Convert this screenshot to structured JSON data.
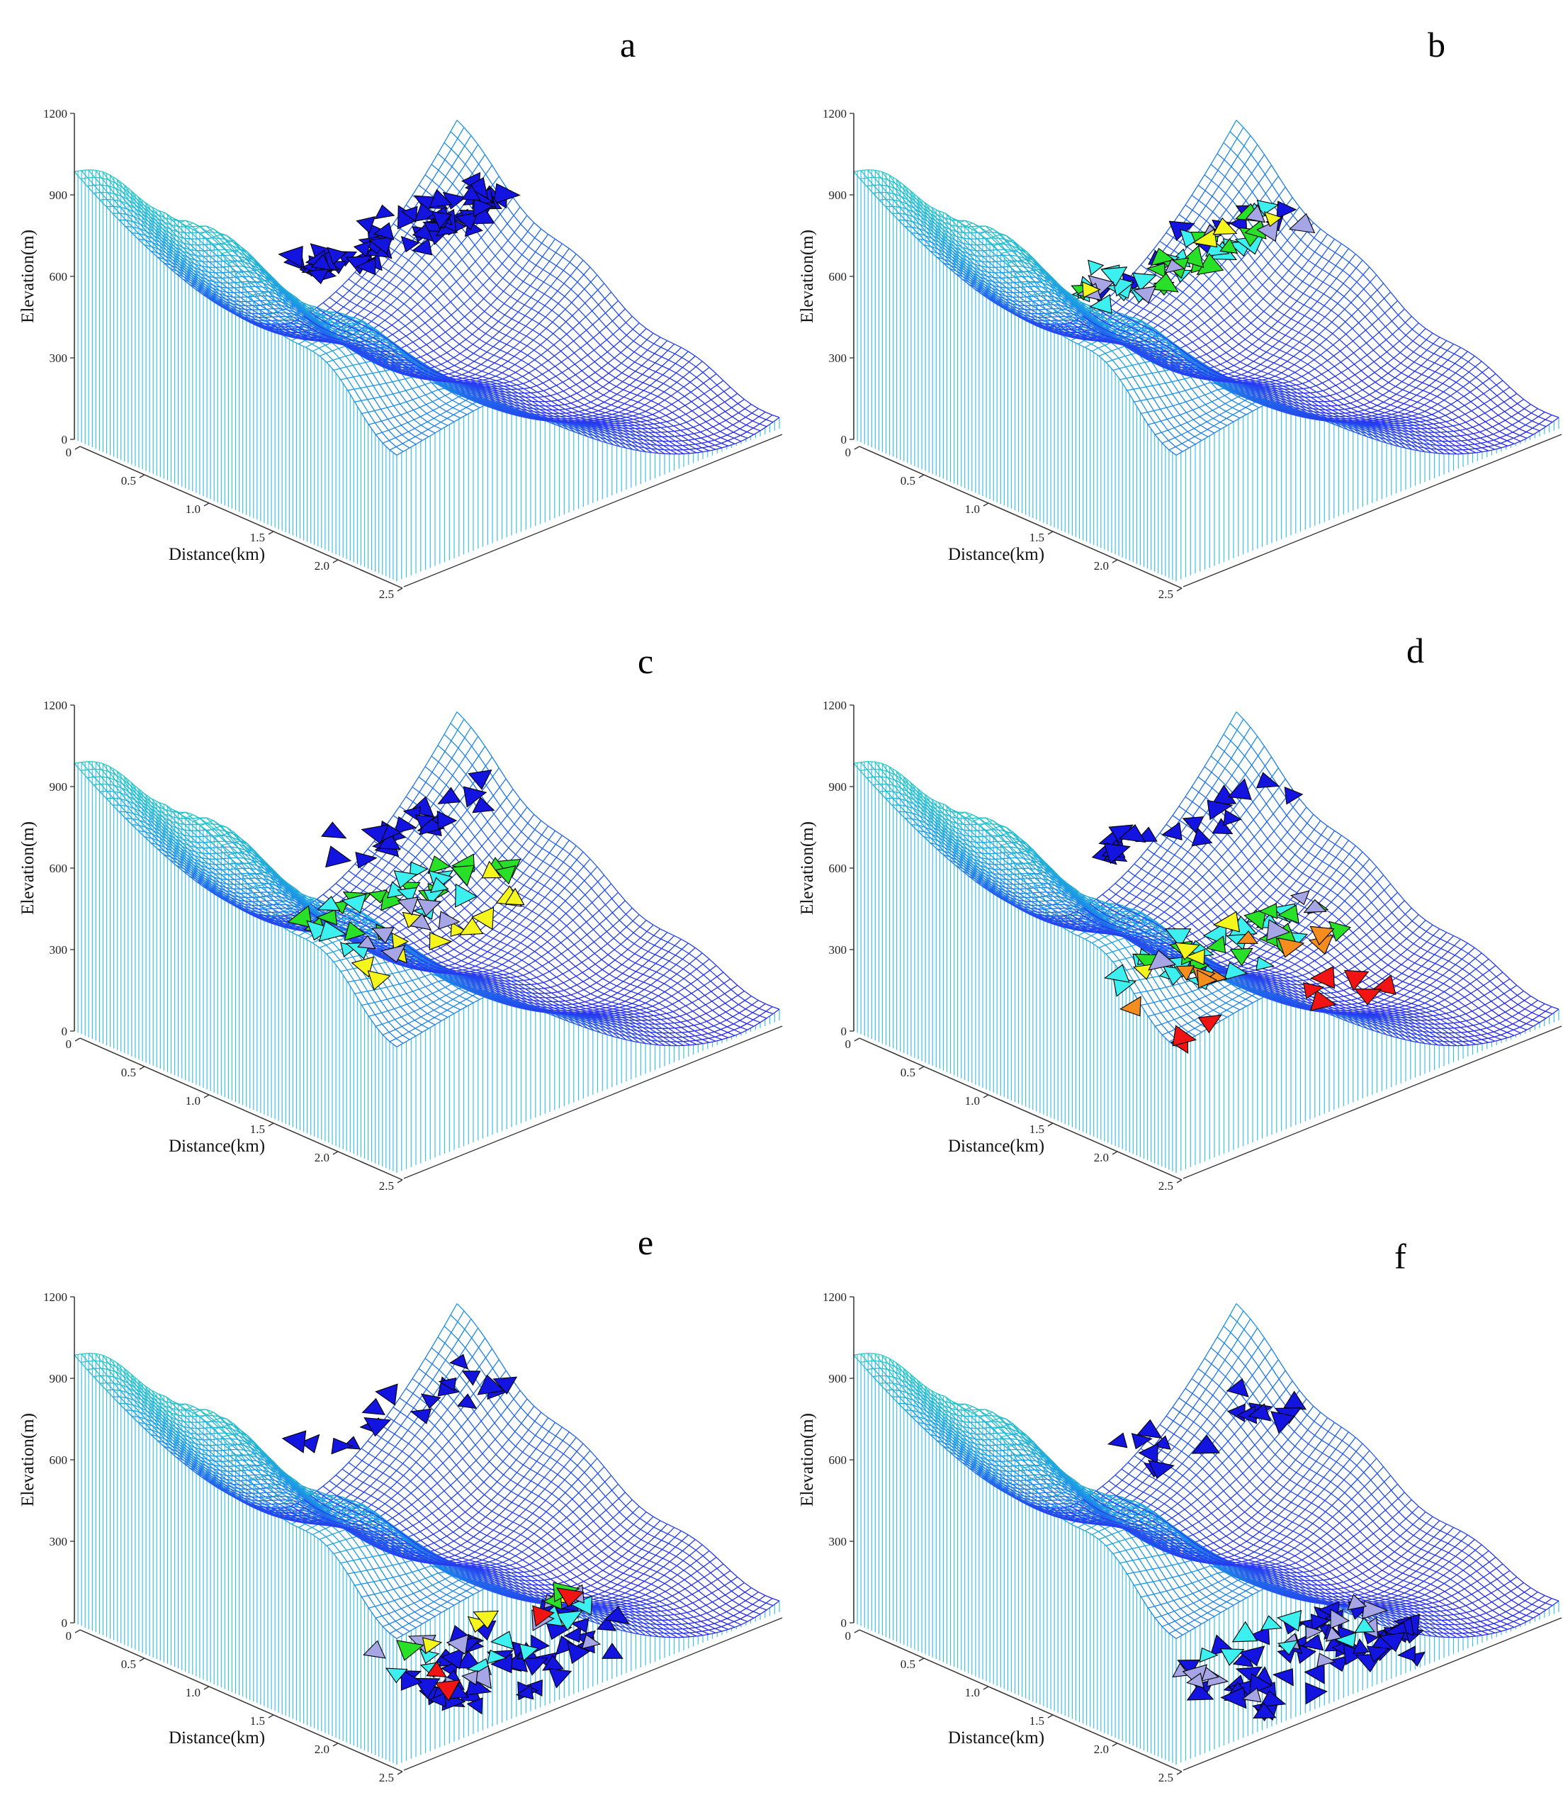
{
  "chart_data": [
    {
      "type": "surface",
      "panel_label": "a",
      "ylabel": "Elevation(m)",
      "xlabel": "Distance(km)",
      "z_ticks": [
        "0",
        "300",
        "600",
        "900",
        "1200"
      ],
      "x_ticks": [
        "0",
        "0.5",
        "1.0",
        "1.5",
        "2.0",
        "2.5"
      ],
      "zlim": [
        0,
        1200
      ],
      "xlim": [
        0,
        2.5
      ],
      "particles": [
        {
          "along": 0.48,
          "elevation": 760,
          "color": "blue",
          "count": 70,
          "spread": 0.08
        }
      ]
    },
    {
      "type": "surface",
      "panel_label": "b",
      "ylabel": "Elevation(m)",
      "xlabel": "Distance(km)",
      "z_ticks": [
        "0",
        "300",
        "600",
        "900",
        "1200"
      ],
      "x_ticks": [
        "0",
        "0.5",
        "1.0",
        "1.5",
        "2.0",
        "2.5"
      ],
      "zlim": [
        0,
        1200
      ],
      "xlim": [
        0,
        2.5
      ],
      "particles": [
        {
          "along": 0.48,
          "elevation": 700,
          "color": "blue",
          "count": 10,
          "spread": 0.07
        },
        {
          "along": 0.5,
          "elevation": 680,
          "color": "cyan",
          "count": 22,
          "spread": 0.08
        },
        {
          "along": 0.5,
          "elevation": 660,
          "color": "green",
          "count": 16,
          "spread": 0.08
        },
        {
          "along": 0.5,
          "elevation": 680,
          "color": "lavender",
          "count": 8,
          "spread": 0.07
        },
        {
          "along": 0.5,
          "elevation": 690,
          "color": "yellow",
          "count": 4,
          "spread": 0.05
        }
      ]
    },
    {
      "type": "surface",
      "panel_label": "c",
      "ylabel": "Elevation(m)",
      "xlabel": "Distance(km)",
      "z_ticks": [
        "0",
        "300",
        "600",
        "900",
        "1200"
      ],
      "x_ticks": [
        "0",
        "0.5",
        "1.0",
        "1.5",
        "2.0",
        "2.5"
      ],
      "zlim": [
        0,
        1200
      ],
      "xlim": [
        0,
        2.5
      ],
      "particles": [
        {
          "along": 0.5,
          "elevation": 760,
          "color": "blue",
          "count": 20,
          "spread": 0.07
        },
        {
          "along": 0.52,
          "elevation": 520,
          "color": "green",
          "count": 18,
          "spread": 0.08
        },
        {
          "along": 0.54,
          "elevation": 520,
          "color": "cyan",
          "count": 16,
          "spread": 0.09
        },
        {
          "along": 0.56,
          "elevation": 420,
          "color": "yellow",
          "count": 12,
          "spread": 0.1
        },
        {
          "along": 0.56,
          "elevation": 480,
          "color": "lavender",
          "count": 7,
          "spread": 0.1
        }
      ]
    },
    {
      "type": "surface",
      "panel_label": "d",
      "ylabel": "Elevation(m)",
      "xlabel": "Distance(km)",
      "z_ticks": [
        "0",
        "300",
        "600",
        "900",
        "1200"
      ],
      "x_ticks": [
        "0",
        "0.5",
        "1.0",
        "1.5",
        "2.0",
        "2.5"
      ],
      "zlim": [
        0,
        1200
      ],
      "xlim": [
        0,
        2.5
      ],
      "particles": [
        {
          "along": 0.5,
          "elevation": 780,
          "color": "blue",
          "count": 18,
          "spread": 0.07
        },
        {
          "along": 0.62,
          "elevation": 380,
          "color": "cyan",
          "count": 22,
          "spread": 0.1
        },
        {
          "along": 0.62,
          "elevation": 370,
          "color": "green",
          "count": 14,
          "spread": 0.09
        },
        {
          "along": 0.64,
          "elevation": 320,
          "color": "orange",
          "count": 9,
          "spread": 0.08
        },
        {
          "along": 0.6,
          "elevation": 440,
          "color": "yellow",
          "count": 4,
          "spread": 0.06
        },
        {
          "along": 0.6,
          "elevation": 420,
          "color": "lavender",
          "count": 4,
          "spread": 0.06
        },
        {
          "along": 0.78,
          "elevation": 230,
          "color": "red",
          "count": 9,
          "spread": 0.06
        }
      ]
    },
    {
      "type": "surface",
      "panel_label": "e",
      "ylabel": "Elevation(m)",
      "xlabel": "Distance(km)",
      "z_ticks": [
        "0",
        "300",
        "600",
        "900",
        "1200"
      ],
      "x_ticks": [
        "0",
        "0.5",
        "1.0",
        "1.5",
        "2.0",
        "2.5"
      ],
      "zlim": [
        0,
        1200
      ],
      "xlim": [
        0,
        2.5
      ],
      "particles": [
        {
          "along": 0.48,
          "elevation": 780,
          "color": "blue",
          "count": 18,
          "spread": 0.07
        },
        {
          "along": 0.85,
          "elevation": 70,
          "color": "blue",
          "count": 50,
          "spread": 0.14
        },
        {
          "along": 0.82,
          "elevation": 90,
          "color": "cyan",
          "count": 10,
          "spread": 0.1
        },
        {
          "along": 0.8,
          "elevation": 100,
          "color": "lavender",
          "count": 10,
          "spread": 0.12
        },
        {
          "along": 0.74,
          "elevation": 140,
          "color": "yellow",
          "count": 4,
          "spread": 0.05
        },
        {
          "along": 0.76,
          "elevation": 130,
          "color": "green",
          "count": 3,
          "spread": 0.05
        },
        {
          "along": 0.82,
          "elevation": 110,
          "color": "red",
          "count": 4,
          "spread": 0.1
        }
      ]
    },
    {
      "type": "surface",
      "panel_label": "f",
      "ylabel": "Elevation(m)",
      "xlabel": "Distance(km)",
      "z_ticks": [
        "0",
        "300",
        "600",
        "900",
        "1200"
      ],
      "x_ticks": [
        "0",
        "0.5",
        "1.0",
        "1.5",
        "2.0",
        "2.5"
      ],
      "zlim": [
        0,
        1200
      ],
      "xlim": [
        0,
        2.5
      ],
      "particles": [
        {
          "along": 0.5,
          "elevation": 710,
          "color": "blue",
          "count": 16,
          "spread": 0.09
        },
        {
          "along": 0.86,
          "elevation": 70,
          "color": "blue",
          "count": 60,
          "spread": 0.15
        },
        {
          "along": 0.84,
          "elevation": 80,
          "color": "lavender",
          "count": 14,
          "spread": 0.13
        },
        {
          "along": 0.8,
          "elevation": 90,
          "color": "cyan",
          "count": 8,
          "spread": 0.09
        }
      ]
    }
  ],
  "colors": {
    "blue": "#1414e0",
    "cyan": "#3cf0f0",
    "green": "#28e028",
    "lavender": "#a6a6e6",
    "yellow": "#f5f51e",
    "orange": "#f58c1e",
    "red": "#f01414",
    "mesh_high": "#2ee0b8",
    "mesh_mid": "#1c96e6",
    "mesh_low": "#2828f0",
    "wall": "#3cc0ea"
  }
}
